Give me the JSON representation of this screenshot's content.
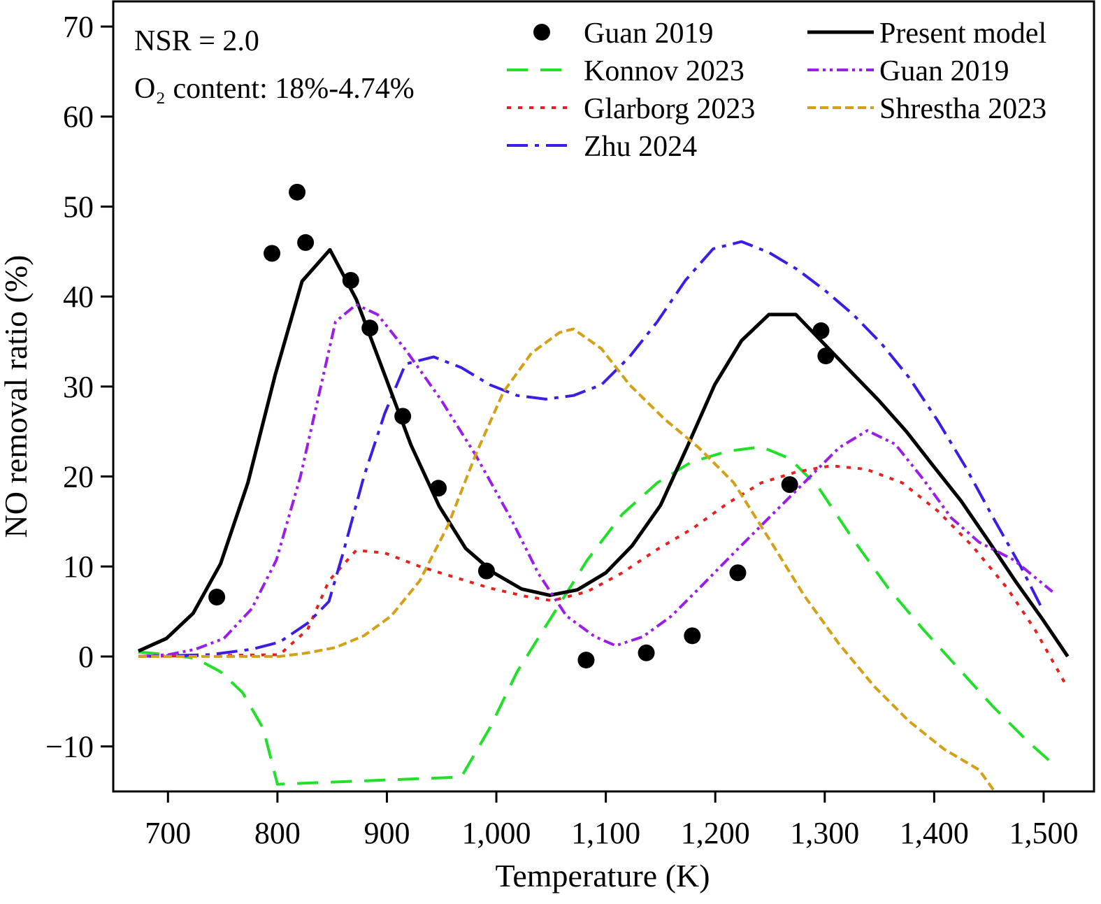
{
  "chart_data": {
    "type": "line",
    "xlabel": "Temperature (K)",
    "ylabel": "NO removal ratio (%)",
    "annotations": [
      "NSR = 2.0",
      "O₂ content: 18%-4.74%"
    ],
    "xlim": [
      650,
      1546
    ],
    "ylim": [
      -15,
      72.8
    ],
    "xticks": [
      700,
      800,
      900,
      {
        "value": 1000,
        "label": "1,000"
      },
      {
        "value": 1100,
        "label": "1,100"
      },
      {
        "value": 1200,
        "label": "1,200"
      },
      {
        "value": 1300,
        "label": "1,300"
      },
      {
        "value": 1400,
        "label": "1,400"
      },
      {
        "value": 1500,
        "label": "1,500"
      }
    ],
    "yticks": [
      {
        "value": -10,
        "label": "−10"
      },
      0,
      10,
      20,
      30,
      40,
      50,
      60,
      70
    ],
    "series": [
      {
        "name": "Guan 2019",
        "type": "scatter",
        "color": "#000000",
        "x": [
          744.6,
          795,
          818,
          825.7,
          867,
          884.5,
          914.5,
          947,
          991,
          1082,
          1137,
          1179,
          1220.6,
          1268,
          1296.6,
          1301
        ],
        "values": [
          6.6,
          44.8,
          51.6,
          46.0,
          41.8,
          36.5,
          26.7,
          18.7,
          9.5,
          -0.4,
          0.4,
          2.3,
          9.3,
          19.1,
          36.2,
          33.4
        ]
      },
      {
        "name": "Konnov 2023",
        "type": "line",
        "dash": "long-dash",
        "color": "#22e02a",
        "x": [
          673,
          700,
          725,
          748,
          768,
          787,
          800,
          968,
          993.8,
          1019,
          1051,
          1083,
          1115,
          1147,
          1178,
          1211,
          1242,
          1268,
          1293.6,
          1326,
          1358,
          1390,
          1422,
          1454,
          1486,
          1511
        ],
        "values": [
          0.5,
          0.2,
          -0.2,
          -1.7,
          -4,
          -8,
          -14.2,
          -13.4,
          -8,
          -1.7,
          4.5,
          10.7,
          15.8,
          19.3,
          21.6,
          22.8,
          23.3,
          22,
          18.9,
          13,
          7.6,
          3,
          -1.3,
          -5.6,
          -9.5,
          -12.2
        ]
      },
      {
        "name": "Glarborg 2023",
        "type": "line",
        "dash": "dotted",
        "color": "#e82020",
        "x": [
          673,
          802,
          827.6,
          847,
          872,
          898,
          930,
          962,
          994,
          1026,
          1051,
          1083,
          1115,
          1147,
          1179,
          1211,
          1242,
          1274,
          1306,
          1338,
          1370.8,
          1403,
          1434.7,
          1466.6,
          1492,
          1521
        ],
        "values": [
          0,
          0.2,
          3,
          8.4,
          11.8,
          11.5,
          10,
          8.8,
          7.6,
          6.7,
          6.2,
          7.2,
          9.3,
          11.9,
          14.2,
          17,
          19.3,
          20.5,
          21.2,
          20.8,
          19.3,
          16.2,
          12.3,
          7.6,
          3,
          -3.3
        ]
      },
      {
        "name": "Zhu 2024",
        "type": "line",
        "dash": "dash-dot",
        "color": "#3a1ee6",
        "x": [
          673,
          738,
          776.5,
          802,
          827.6,
          847,
          860,
          879,
          898,
          917,
          942.6,
          968,
          994,
          1019,
          1045,
          1070.5,
          1096,
          1121.6,
          1147,
          1172.7,
          1198,
          1224,
          1249,
          1275,
          1300,
          1326,
          1351.6,
          1377,
          1402.7,
          1428,
          1454,
          1479,
          1498.6
        ],
        "values": [
          0,
          0.2,
          0.8,
          1.6,
          3.7,
          6.1,
          11.5,
          20,
          27,
          32.5,
          33.3,
          32.1,
          30.2,
          29,
          28.6,
          29,
          30.2,
          33.3,
          37.2,
          41.8,
          45.3,
          46.1,
          44.9,
          43,
          40.7,
          38,
          34.8,
          31,
          26.3,
          21.2,
          15.4,
          10,
          5.3
        ]
      },
      {
        "name": "Present model",
        "type": "line",
        "dash": "solid",
        "color": "#000000",
        "x": [
          673,
          698.6,
          723,
          748,
          773,
          798,
          822.5,
          848,
          872,
          898,
          922,
          947.8,
          972,
          997.6,
          1023,
          1048.7,
          1074,
          1100,
          1124,
          1150,
          1174,
          1199.5,
          1224,
          1249,
          1273.6,
          1299,
          1323.5,
          1349,
          1374.6,
          1399,
          1424.5,
          1448.7,
          1474,
          1498.6,
          1522
        ],
        "values": [
          0.6,
          2.0,
          4.8,
          10.3,
          19.3,
          31.3,
          41.7,
          45.2,
          39.7,
          31.3,
          23.5,
          16.7,
          12.0,
          9.3,
          7.5,
          6.8,
          7.4,
          9.3,
          12.3,
          16.8,
          23.2,
          30.2,
          35.1,
          38.0,
          38.0,
          34.8,
          31.7,
          28.5,
          25.0,
          21.2,
          17.3,
          13.0,
          8.4,
          4.2,
          0
        ]
      },
      {
        "name": "Guan 2019",
        "type": "line",
        "dash": "dash-dot-dot",
        "color": "#9b1ee8",
        "x": [
          673,
          700,
          725,
          751,
          776.5,
          799,
          821,
          837,
          853,
          872,
          891.5,
          917,
          949,
          981,
          1013,
          1038.5,
          1064,
          1090,
          1109,
          1134,
          1160,
          1185.5,
          1217,
          1249,
          1281,
          1313,
          1338.8,
          1364.3,
          1390,
          1415.6,
          1441,
          1473,
          1508
        ],
        "values": [
          0,
          0.2,
          0.8,
          2,
          5.3,
          10.7,
          20,
          28.6,
          37.2,
          39.1,
          38,
          34.1,
          28.6,
          22.4,
          15.4,
          9.2,
          4.5,
          2.2,
          1.2,
          2.2,
          4.5,
          7.6,
          11.5,
          15.4,
          19.3,
          23.2,
          25.1,
          23.6,
          19.7,
          15.4,
          12.7,
          10.7,
          7.2
        ]
      },
      {
        "name": "Shrestha 2023",
        "type": "line",
        "dash": "short-dash",
        "color": "#d4a017",
        "x": [
          673,
          802,
          827.6,
          853,
          879,
          904,
          930,
          956,
          981,
          1006.5,
          1032,
          1057.7,
          1070.5,
          1096,
          1121.6,
          1153.5,
          1185,
          1217,
          1249,
          1281,
          1313,
          1345,
          1377,
          1409,
          1441,
          1454
        ],
        "values": [
          0,
          0,
          0.4,
          1,
          2.3,
          4.5,
          8.4,
          14.6,
          22.4,
          29.4,
          33.7,
          36,
          36.4,
          34.2,
          30.2,
          26.4,
          23.2,
          19.3,
          13.1,
          6.8,
          1.4,
          -3.3,
          -7.2,
          -10.3,
          -12.6,
          -14.8
        ]
      }
    ]
  }
}
